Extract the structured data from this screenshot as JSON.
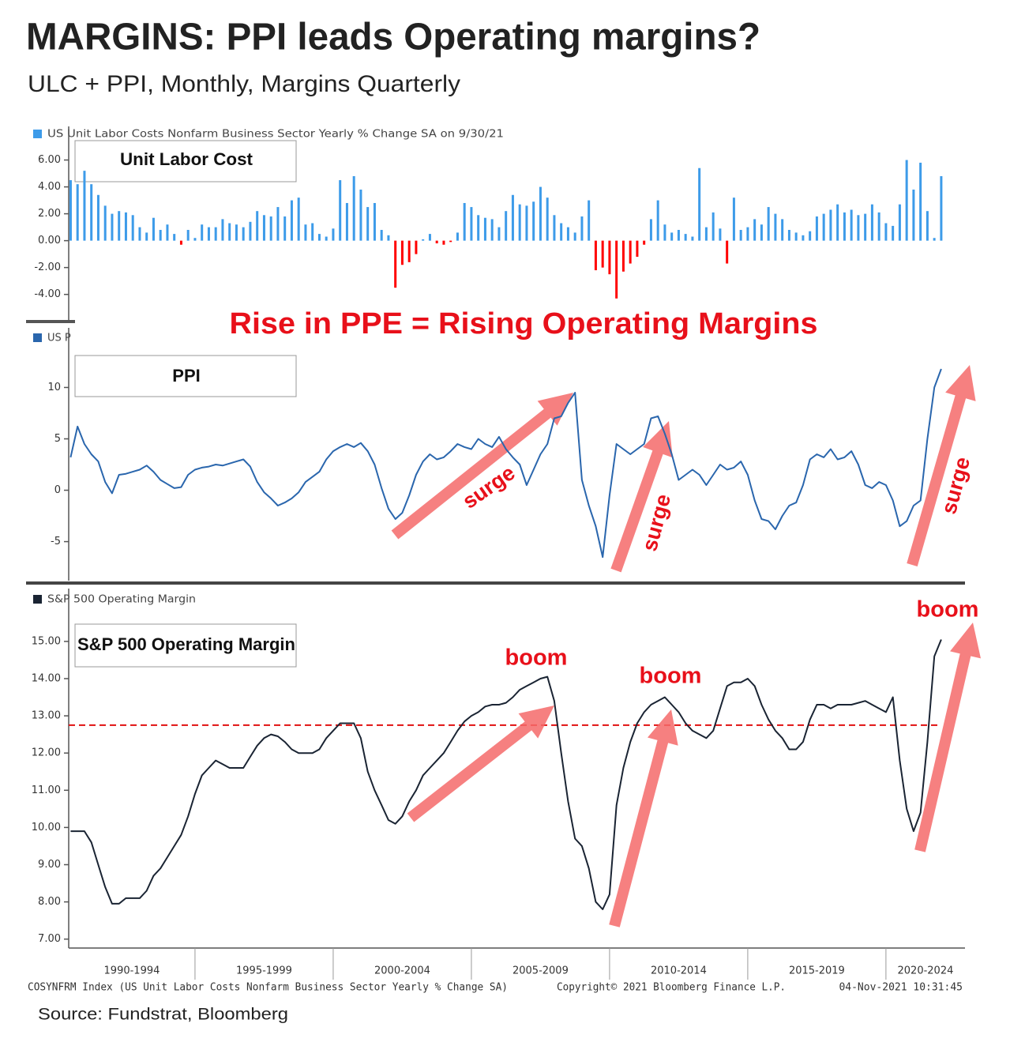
{
  "title": "MARGINS: PPI leads Operating margins?",
  "subtitle": "ULC + PPI,  Monthly, Margins Quarterly",
  "annotation": "Rise in PPE = Rising Operating Margins",
  "chart_data": [
    {
      "type": "bar",
      "legend": "US Unit Labor Costs Nonfarm Business Sector Yearly % Change SA  on 9/30/21",
      "label": "Unit Labor Cost",
      "color": "#3d9be9",
      "negative_color": "#ff0000",
      "xlim": [
        1990.43,
        2022.86
      ],
      "ylim": [
        -5.9,
        8.5
      ],
      "yticks": [
        {
          "value": 6,
          "label": "6.00"
        },
        {
          "value": 4,
          "label": "4.00"
        },
        {
          "value": 2,
          "label": "2.00"
        },
        {
          "value": 0,
          "label": "0.00"
        },
        {
          "value": -2,
          "label": "-2.00"
        },
        {
          "value": -4,
          "label": "-4.00"
        }
      ],
      "x": [
        1990.5,
        1990.75,
        1991,
        1991.25,
        1991.5,
        1991.75,
        1992,
        1992.25,
        1992.5,
        1992.75,
        1993,
        1993.25,
        1993.5,
        1993.75,
        1994,
        1994.25,
        1994.5,
        1994.75,
        1995,
        1995.25,
        1995.5,
        1995.75,
        1996,
        1996.25,
        1996.5,
        1996.75,
        1997,
        1997.25,
        1997.5,
        1997.75,
        1998,
        1998.25,
        1998.5,
        1998.75,
        1999,
        1999.25,
        1999.5,
        1999.75,
        2000,
        2000.25,
        2000.5,
        2000.75,
        2001,
        2001.25,
        2001.5,
        2001.75,
        2002,
        2002.25,
        2002.5,
        2002.75,
        2003,
        2003.25,
        2003.5,
        2003.75,
        2004,
        2004.25,
        2004.5,
        2004.75,
        2005,
        2005.25,
        2005.5,
        2005.75,
        2006,
        2006.25,
        2006.5,
        2006.75,
        2007,
        2007.25,
        2007.5,
        2007.75,
        2008,
        2008.25,
        2008.5,
        2008.75,
        2009,
        2009.25,
        2009.5,
        2009.75,
        2010,
        2010.25,
        2010.5,
        2010.75,
        2011,
        2011.25,
        2011.5,
        2011.75,
        2012,
        2012.25,
        2012.5,
        2012.75,
        2013,
        2013.25,
        2013.5,
        2013.75,
        2014,
        2014.25,
        2014.5,
        2014.75,
        2015,
        2015.25,
        2015.5,
        2015.75,
        2016,
        2016.25,
        2016.5,
        2016.75,
        2017,
        2017.25,
        2017.5,
        2017.75,
        2018,
        2018.25,
        2018.5,
        2018.75,
        2019,
        2019.25,
        2019.5,
        2019.75,
        2020,
        2020.25,
        2020.5,
        2020.75,
        2021,
        2021.25,
        2021.5,
        2021.75,
        2022
      ],
      "values": [
        4.5,
        4.2,
        5.2,
        4.2,
        3.4,
        2.6,
        2.0,
        2.2,
        2.1,
        1.9,
        1.0,
        0.6,
        1.7,
        0.8,
        1.2,
        0.5,
        -0.3,
        0.8,
        0.2,
        1.2,
        1.0,
        1.0,
        1.6,
        1.3,
        1.2,
        1.0,
        1.4,
        2.2,
        1.9,
        1.8,
        2.5,
        1.8,
        3.0,
        3.2,
        1.2,
        1.3,
        0.5,
        0.3,
        0.9,
        4.5,
        2.8,
        4.8,
        3.8,
        2.5,
        2.8,
        0.8,
        0.4,
        -3.5,
        -1.8,
        -1.6,
        -1.0,
        0.1,
        0.5,
        -0.2,
        -0.3,
        -0.1,
        0.6,
        2.8,
        2.5,
        1.9,
        1.7,
        1.6,
        1.0,
        2.2,
        3.4,
        2.7,
        2.6,
        2.9,
        4.0,
        3.2,
        1.9,
        1.3,
        1.0,
        0.6,
        1.8,
        3.0,
        -2.2,
        -2.0,
        -2.5,
        -4.3,
        -2.3,
        -1.7,
        -1.2,
        -0.3,
        1.6,
        3.0,
        1.2,
        0.6,
        0.8,
        0.5,
        0.3,
        5.4,
        1.0,
        2.1,
        0.9,
        -1.7,
        3.2,
        0.8,
        1.0,
        1.6,
        1.2,
        2.5,
        2.0,
        1.6,
        0.8,
        0.6,
        0.4,
        0.7,
        1.8,
        2.0,
        2.3,
        2.7,
        2.1,
        2.3,
        1.9,
        2.0,
        2.7,
        2.1,
        1.3,
        1.1,
        2.7,
        6.0,
        3.8,
        5.8,
        2.2,
        0.2,
        4.8
      ]
    },
    {
      "type": "line",
      "legend": "US P",
      "label": "PPI",
      "color": "#2a66ad",
      "annotations": [
        "surge",
        "surge",
        "surge"
      ],
      "xlim": [
        1990.43,
        2022.86
      ],
      "ylim": [
        -8.8,
        15.8
      ],
      "yticks": [
        10,
        5,
        0,
        -5
      ],
      "x": [
        1990.5,
        1990.75,
        1991,
        1991.25,
        1991.5,
        1991.75,
        1992,
        1992.25,
        1992.5,
        1992.75,
        1993,
        1993.25,
        1993.5,
        1993.75,
        1994,
        1994.25,
        1994.5,
        1994.75,
        1995,
        1995.25,
        1995.5,
        1995.75,
        1996,
        1996.25,
        1996.5,
        1996.75,
        1997,
        1997.25,
        1997.5,
        1997.75,
        1998,
        1998.25,
        1998.5,
        1998.75,
        1999,
        1999.25,
        1999.5,
        1999.75,
        2000,
        2000.25,
        2000.5,
        2000.75,
        2001,
        2001.25,
        2001.5,
        2001.75,
        2002,
        2002.25,
        2002.5,
        2002.75,
        2003,
        2003.25,
        2003.5,
        2003.75,
        2004,
        2004.25,
        2004.5,
        2004.75,
        2005,
        2005.25,
        2005.5,
        2005.75,
        2006,
        2006.25,
        2006.5,
        2006.75,
        2007,
        2007.25,
        2007.5,
        2007.75,
        2008,
        2008.25,
        2008.5,
        2008.75,
        2009,
        2009.25,
        2009.5,
        2009.75,
        2010,
        2010.25,
        2010.5,
        2010.75,
        2011,
        2011.25,
        2011.5,
        2011.75,
        2012,
        2012.25,
        2012.5,
        2012.75,
        2013,
        2013.25,
        2013.5,
        2013.75,
        2014,
        2014.25,
        2014.5,
        2014.75,
        2015,
        2015.25,
        2015.5,
        2015.75,
        2016,
        2016.25,
        2016.5,
        2016.75,
        2017,
        2017.25,
        2017.5,
        2017.75,
        2018,
        2018.25,
        2018.5,
        2018.75,
        2019,
        2019.25,
        2019.5,
        2019.75,
        2020,
        2020.25,
        2020.5,
        2020.75,
        2021,
        2021.25,
        2021.5,
        2021.75,
        2022
      ],
      "values": [
        3.2,
        6.2,
        4.5,
        3.5,
        2.8,
        0.8,
        -0.3,
        1.5,
        1.6,
        1.8,
        2.0,
        2.4,
        1.8,
        1.0,
        0.6,
        0.2,
        0.3,
        1.5,
        2.0,
        2.2,
        2.3,
        2.5,
        2.4,
        2.6,
        2.8,
        3.0,
        2.3,
        0.8,
        -0.2,
        -0.8,
        -1.5,
        -1.2,
        -0.8,
        -0.2,
        0.8,
        1.3,
        1.8,
        3.0,
        3.8,
        4.2,
        4.5,
        4.2,
        4.6,
        3.8,
        2.5,
        0.2,
        -1.8,
        -2.8,
        -2.2,
        -0.5,
        1.5,
        2.8,
        3.5,
        3.0,
        3.2,
        3.8,
        4.5,
        4.2,
        4.0,
        5.0,
        4.5,
        4.2,
        5.2,
        4.0,
        3.2,
        2.5,
        0.5,
        2.0,
        3.5,
        4.5,
        7.0,
        7.2,
        8.5,
        9.5,
        1.0,
        -1.5,
        -3.5,
        -6.5,
        -0.5,
        4.5,
        4.0,
        3.5,
        4.0,
        4.5,
        7.0,
        7.2,
        5.5,
        3.5,
        1.0,
        1.5,
        2.0,
        1.5,
        0.5,
        1.5,
        2.5,
        2.0,
        2.2,
        2.8,
        1.5,
        -1.0,
        -2.8,
        -3.0,
        -3.8,
        -2.5,
        -1.5,
        -1.2,
        0.5,
        3.0,
        3.5,
        3.2,
        4.0,
        3.0,
        3.2,
        3.8,
        2.5,
        0.5,
        0.2,
        0.8,
        0.5,
        -1.0,
        -3.5,
        -3.0,
        -1.5,
        -1.0,
        5.0,
        10.0,
        11.8
      ]
    },
    {
      "type": "line",
      "legend": "S&P 500 Operating Margin",
      "label": "S&P 500 Operating Margin",
      "color": "#1a2433",
      "hline": 12.75,
      "hline_color": "#e01010",
      "annotations": [
        "boom",
        "boom",
        "boom"
      ],
      "xlim": [
        1990.43,
        2022.86
      ],
      "ylim": [
        6.76,
        16.42
      ],
      "yticks": [
        {
          "value": 15,
          "label": "15.00"
        },
        {
          "value": 14,
          "label": "14.00"
        },
        {
          "value": 13,
          "label": "13.00"
        },
        {
          "value": 12,
          "label": "12.00"
        },
        {
          "value": 11,
          "label": "11.00"
        },
        {
          "value": 10,
          "label": "10.00"
        },
        {
          "value": 9,
          "label": "9.00"
        },
        {
          "value": 8,
          "label": "8.00"
        },
        {
          "value": 7,
          "label": "7.00"
        }
      ],
      "xticks": [
        {
          "value": 1990,
          "label": "1990-1994"
        },
        {
          "value": 1995,
          "label": "1995-1999"
        },
        {
          "value": 2000,
          "label": "2000-2004"
        },
        {
          "value": 2005,
          "label": "2005-2009"
        },
        {
          "value": 2010,
          "label": "2010-2014"
        },
        {
          "value": 2015,
          "label": "2015-2019"
        },
        {
          "value": 2020,
          "label": "2020-2024"
        }
      ],
      "x": [
        1990.5,
        1990.75,
        1991,
        1991.25,
        1991.5,
        1991.75,
        1992,
        1992.25,
        1992.5,
        1992.75,
        1993,
        1993.25,
        1993.5,
        1993.75,
        1994,
        1994.25,
        1994.5,
        1994.75,
        1995,
        1995.25,
        1995.5,
        1995.75,
        1996,
        1996.25,
        1996.5,
        1996.75,
        1997,
        1997.25,
        1997.5,
        1997.75,
        1998,
        1998.25,
        1998.5,
        1998.75,
        1999,
        1999.25,
        1999.5,
        1999.75,
        2000,
        2000.25,
        2000.5,
        2000.75,
        2001,
        2001.25,
        2001.5,
        2001.75,
        2002,
        2002.25,
        2002.5,
        2002.75,
        2003,
        2003.25,
        2003.5,
        2003.75,
        2004,
        2004.25,
        2004.5,
        2004.75,
        2005,
        2005.25,
        2005.5,
        2005.75,
        2006,
        2006.25,
        2006.5,
        2006.75,
        2007,
        2007.25,
        2007.5,
        2007.75,
        2008,
        2008.25,
        2008.5,
        2008.75,
        2009,
        2009.25,
        2009.5,
        2009.75,
        2010,
        2010.25,
        2010.5,
        2010.75,
        2011,
        2011.25,
        2011.5,
        2011.75,
        2012,
        2012.25,
        2012.5,
        2012.75,
        2013,
        2013.25,
        2013.5,
        2013.75,
        2014,
        2014.25,
        2014.5,
        2014.75,
        2015,
        2015.25,
        2015.5,
        2015.75,
        2016,
        2016.25,
        2016.5,
        2016.75,
        2017,
        2017.25,
        2017.5,
        2017.75,
        2018,
        2018.25,
        2018.5,
        2018.75,
        2019,
        2019.25,
        2019.5,
        2019.75,
        2020,
        2020.25,
        2020.5,
        2020.75,
        2021,
        2021.25,
        2021.5,
        2021.75,
        2022
      ],
      "values": [
        9.9,
        9.9,
        9.9,
        9.6,
        9.0,
        8.4,
        7.95,
        7.95,
        8.1,
        8.1,
        8.1,
        8.3,
        8.7,
        8.9,
        9.2,
        9.5,
        9.8,
        10.3,
        10.9,
        11.4,
        11.6,
        11.8,
        11.7,
        11.6,
        11.6,
        11.6,
        11.9,
        12.2,
        12.4,
        12.5,
        12.45,
        12.3,
        12.1,
        12.0,
        12.0,
        12.0,
        12.1,
        12.4,
        12.6,
        12.8,
        12.8,
        12.8,
        12.4,
        11.5,
        11.0,
        10.6,
        10.2,
        10.1,
        10.3,
        10.7,
        11.0,
        11.4,
        11.6,
        11.8,
        12.0,
        12.3,
        12.6,
        12.85,
        13.0,
        13.1,
        13.25,
        13.3,
        13.3,
        13.35,
        13.5,
        13.7,
        13.8,
        13.9,
        14.0,
        14.05,
        13.4,
        12.0,
        10.7,
        9.7,
        9.5,
        8.9,
        8.0,
        7.8,
        8.2,
        10.6,
        11.6,
        12.3,
        12.8,
        13.1,
        13.3,
        13.4,
        13.5,
        13.3,
        13.1,
        12.8,
        12.6,
        12.5,
        12.4,
        12.6,
        13.2,
        13.8,
        13.9,
        13.9,
        14.0,
        13.8,
        13.3,
        12.9,
        12.6,
        12.4,
        12.1,
        12.1,
        12.3,
        12.9,
        13.3,
        13.3,
        13.2,
        13.3,
        13.3,
        13.3,
        13.35,
        13.4,
        13.3,
        13.2,
        13.1,
        13.5,
        11.8,
        10.5,
        9.9,
        10.4,
        12.3,
        14.6,
        15.05
      ]
    }
  ],
  "footer": {
    "index_note": "COSYNFRM Index (US Unit Labor Costs Nonfarm Business Sector Yearly % Change SA)",
    "copyright": "Copyright© 2021 Bloomberg Finance L.P.",
    "timestamp": "04-Nov-2021 10:31:45"
  },
  "source": "Source: Fundstrat, Bloomberg"
}
